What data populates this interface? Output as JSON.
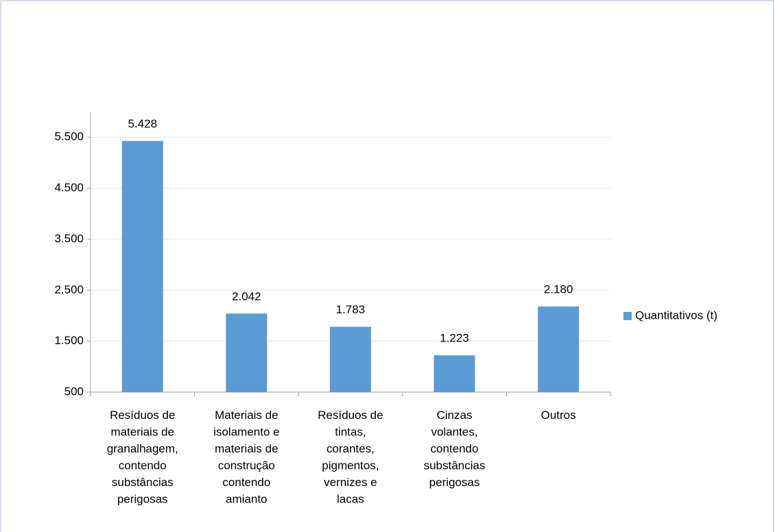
{
  "chart_data": {
    "type": "bar",
    "categories": [
      "Resíduos de\nmateriais de\ngranalhagem,\ncontendo\nsubstâncias\nperigosas",
      "Materiais de\nisolamento e\nmateriais de\nconstrução\ncontendo\namianto",
      "Resíduos de\ntintas,\ncorantes,\npigmentos,\nvernizes e\nlacas",
      "Cinzas\nvolantes,\ncontendo\nsubstâncias\nperigosas",
      "Outros"
    ],
    "series": [
      {
        "name": "Quantitativos (t)",
        "color": "#5b9bd5",
        "values": [
          5428,
          2042,
          1783,
          1223,
          2180
        ],
        "value_labels": [
          "5.428",
          "2.042",
          "1.783",
          "1.223",
          "2.180"
        ]
      }
    ],
    "ylim": [
      500,
      6000
    ],
    "yticks": [
      500,
      {
        "value": 1500,
        "label": "1.500"
      },
      {
        "value": 2500,
        "label": "2.500"
      },
      {
        "value": 3500,
        "label": "3.500"
      },
      {
        "value": 4500,
        "label": "4.500"
      },
      {
        "value": 5500,
        "label": "5.500"
      }
    ],
    "grid": true,
    "legend": "right"
  }
}
